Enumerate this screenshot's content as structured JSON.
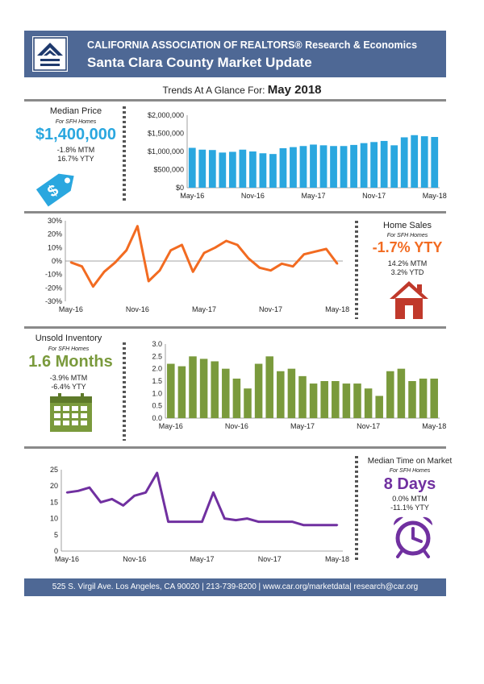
{
  "header": {
    "org": "CALIFORNIA ASSOCIATION OF REALTORS® Research & Economics",
    "title": "Santa Clara County Market Update"
  },
  "glance": {
    "prefix": "Trends At A Glance For:",
    "month": "May 2018"
  },
  "colors": {
    "banner": "#4e6895",
    "price": "#2aa7df",
    "sales": "#f26b21",
    "inventory": "#7a9a3c",
    "time": "#7030a0",
    "house": "#c0392b"
  },
  "panels": {
    "price": {
      "label": "Median Price",
      "sub": "For SFH Homes",
      "value": "$1,400,000",
      "mtm": "-1.8% MTM",
      "yty": "16.7% YTY",
      "icon": "price-tag-icon"
    },
    "sales": {
      "label": "Home Sales",
      "sub": "For SFH Homes",
      "value": "-1.7% YTY",
      "mtm": "14.2% MTM",
      "ytd": "3.2% YTD",
      "icon": "house-icon"
    },
    "inventory": {
      "label": "Unsold Inventory",
      "sub": "For SFH Homes",
      "value": "1.6 Months",
      "mtm": "-3.9% MTM",
      "yty": "-6.4% YTY",
      "icon": "calendar-icon"
    },
    "time": {
      "label": "Median Time on Market",
      "sub": "For SFH Homes",
      "value": "8 Days",
      "mtm": "0.0% MTM",
      "yty": "-11.1% YTY",
      "icon": "alarm-clock-icon"
    }
  },
  "footer": "525 S. Virgil Ave. Los Angeles, CA 90020 | 213-739-8200 | www.car.org/marketdata| research@car.org",
  "chart_data": [
    {
      "id": "price",
      "type": "bar",
      "xticks": [
        "May-16",
        "Nov-16",
        "May-17",
        "Nov-17",
        "May-18"
      ],
      "yticks": [
        "$0",
        "$500,000",
        "$1,000,000",
        "$1,500,000",
        "$2,000,000"
      ],
      "ylim": [
        0,
        2000000
      ],
      "values": [
        1100000,
        1050000,
        1040000,
        970000,
        990000,
        1050000,
        1000000,
        950000,
        930000,
        1090000,
        1120000,
        1150000,
        1190000,
        1170000,
        1150000,
        1150000,
        1180000,
        1230000,
        1260000,
        1290000,
        1170000,
        1390000,
        1450000,
        1420000,
        1400000
      ]
    },
    {
      "id": "sales",
      "type": "line",
      "xticks": [
        "May-16",
        "Nov-16",
        "May-17",
        "Nov-17",
        "May-18"
      ],
      "yticks": [
        "-30%",
        "-20%",
        "-10%",
        "0%",
        "10%",
        "20%",
        "30%"
      ],
      "ylim": [
        -30,
        30
      ],
      "values": [
        -1,
        -4,
        -19,
        -8,
        -1,
        8,
        26,
        -15,
        -7,
        8,
        12,
        -8,
        6,
        10,
        15,
        12,
        2,
        -5,
        -7,
        -2,
        -4,
        5,
        7,
        9,
        -2
      ]
    },
    {
      "id": "inventory",
      "type": "bar",
      "xticks": [
        "May-16",
        "Nov-16",
        "May-17",
        "Nov-17",
        "May-18"
      ],
      "yticks": [
        "0.0",
        "0.5",
        "1.0",
        "1.5",
        "2.0",
        "2.5",
        "3.0"
      ],
      "ylim": [
        0,
        3
      ],
      "values": [
        2.2,
        2.1,
        2.5,
        2.4,
        2.3,
        2.0,
        1.6,
        1.2,
        2.2,
        2.5,
        1.9,
        2.0,
        1.7,
        1.4,
        1.5,
        1.5,
        1.4,
        1.4,
        1.2,
        0.9,
        1.9,
        2.0,
        1.5,
        1.6,
        1.6
      ]
    },
    {
      "id": "time",
      "type": "line",
      "xticks": [
        "May-16",
        "Nov-16",
        "May-17",
        "Nov-17",
        "May-18"
      ],
      "yticks": [
        "0",
        "5",
        "10",
        "15",
        "20",
        "25"
      ],
      "ylim": [
        0,
        25
      ],
      "values": [
        18,
        18.5,
        19.5,
        15,
        16,
        14,
        17,
        18,
        24,
        9,
        9,
        9,
        9,
        18,
        10,
        9.5,
        10,
        9,
        9,
        9,
        9,
        8,
        8,
        8,
        8
      ]
    }
  ]
}
